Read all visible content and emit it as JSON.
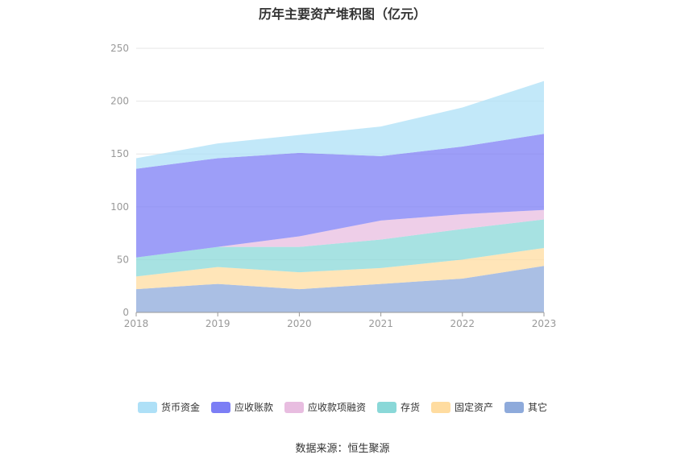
{
  "chart_data": {
    "type": "area",
    "title": "历年主要资产堆积图（亿元）",
    "categories": [
      "2018",
      "2019",
      "2020",
      "2021",
      "2022",
      "2023"
    ],
    "ylim": [
      0,
      250
    ],
    "yticks": [
      0,
      50,
      100,
      150,
      200,
      250
    ],
    "grid": true,
    "legend_position": "bottom",
    "stacked": true,
    "series": [
      {
        "name": "其它",
        "color": "#8eaadb",
        "values": [
          22,
          27,
          22,
          27,
          32,
          44
        ]
      },
      {
        "name": "固定资产",
        "color": "#ffdca0",
        "values": [
          12,
          16,
          16,
          15,
          18,
          17
        ]
      },
      {
        "name": "存货",
        "color": "#8ad8d8",
        "values": [
          18,
          19,
          24,
          27,
          29,
          27
        ]
      },
      {
        "name": "应收款项融资",
        "color": "#e8bde0",
        "values": [
          0,
          0,
          10,
          18,
          14,
          9
        ]
      },
      {
        "name": "应收账款",
        "color": "#7c7ef5",
        "values": [
          84,
          84,
          79,
          61,
          64,
          72
        ]
      },
      {
        "name": "货币资金",
        "color": "#aee0f7",
        "values": [
          10,
          14,
          17,
          28,
          37,
          50
        ]
      }
    ],
    "legend_order": [
      "货币资金",
      "应收账款",
      "应收款项融资",
      "存货",
      "固定资产",
      "其它"
    ]
  },
  "source": "数据来源：恒生聚源"
}
